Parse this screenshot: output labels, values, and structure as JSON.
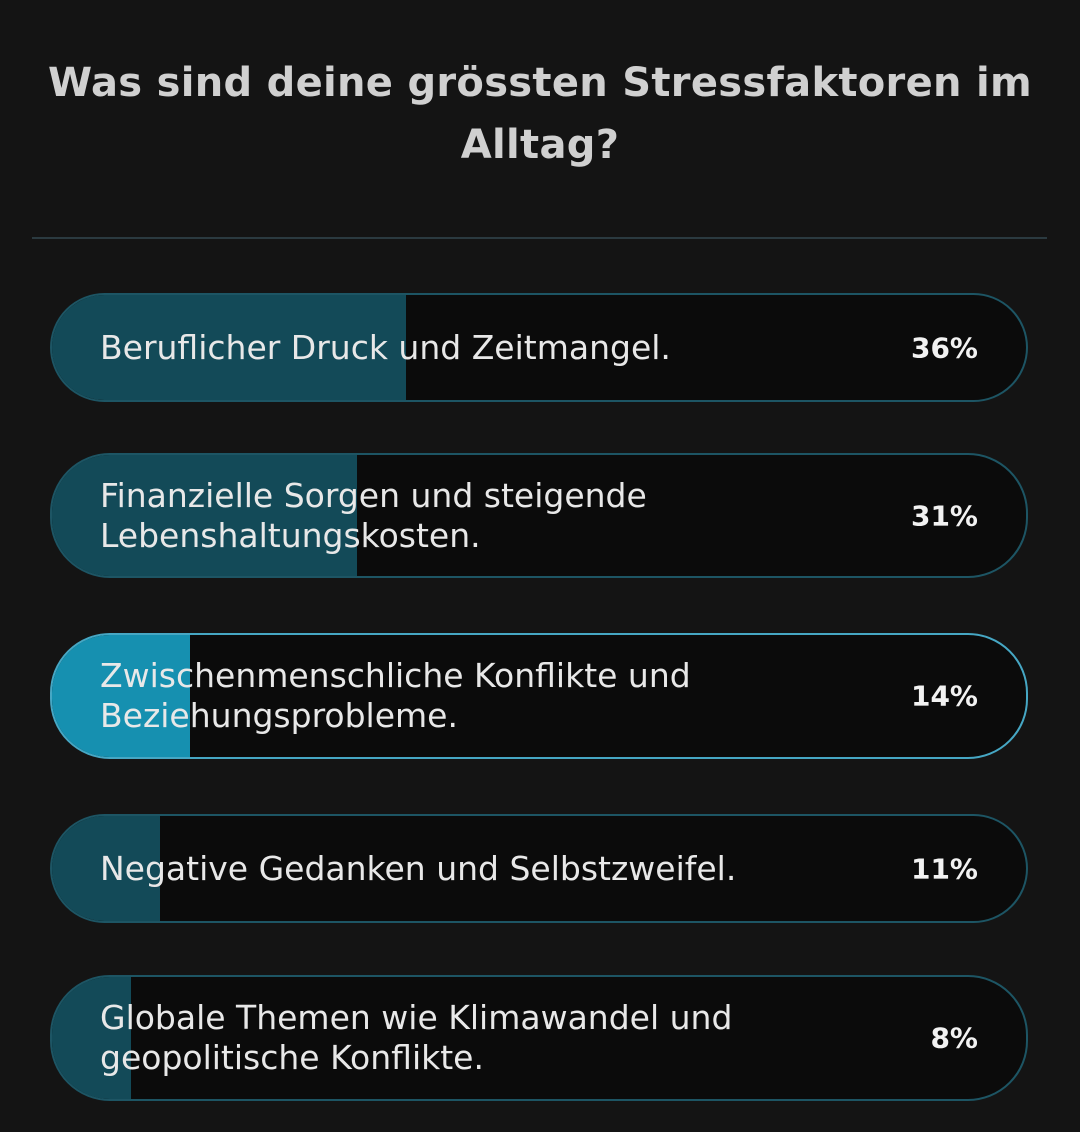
{
  "poll": {
    "question": "Was sind deine grössten Stressfaktoren im Alltag?",
    "options": [
      {
        "label": "Beruflicher Druck und Zeitmangel.",
        "percent_text": "36%",
        "fraction": 0.36,
        "selected": false
      },
      {
        "label": "Finanzielle Sorgen und steigende Lebenshaltungskosten.",
        "percent_text": "31%",
        "fraction": 0.31,
        "selected": false
      },
      {
        "label": "Zwischenmenschliche Konflikte und Beziehungsprobleme.",
        "percent_text": "14%",
        "fraction": 0.14,
        "selected": true
      },
      {
        "label": "Negative Gedanken und Selbstzweifel.",
        "percent_text": "11%",
        "fraction": 0.11,
        "selected": false
      },
      {
        "label": "Globale Themen wie Klimawandel und geopolitische Konflikte.",
        "percent_text": "8%",
        "fraction": 0.08,
        "selected": false
      }
    ]
  },
  "colors": {
    "background": "#141414",
    "bar_fill": "#134a58",
    "bar_fill_selected": "#1690b0",
    "border": "#1d5564",
    "border_selected": "#46a7c4"
  }
}
